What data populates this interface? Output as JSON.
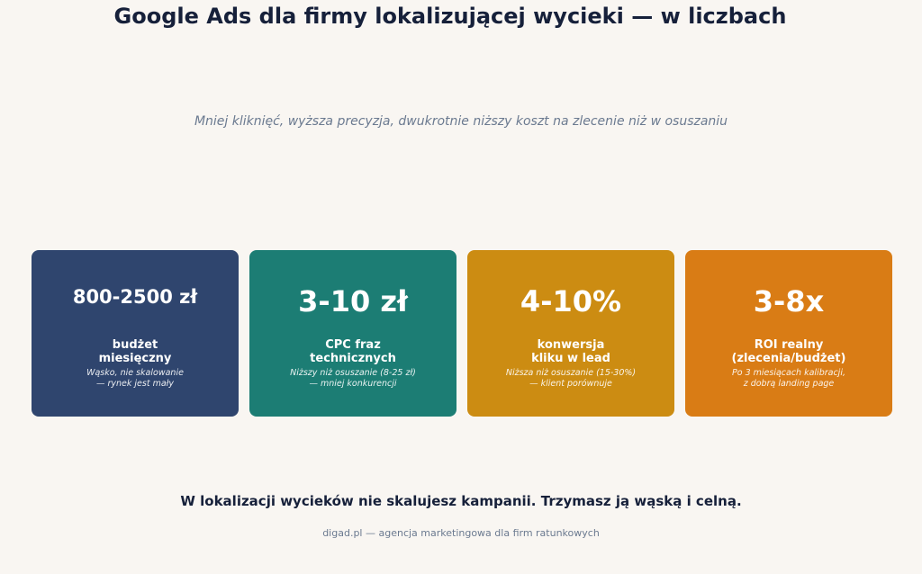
{
  "header": {
    "title": "Google Ads dla firmy lokalizującej wycieki — w liczbach",
    "subtitle": "Mniej kliknięć, wyższa precyzja, dwukrotnie niższy koszt na zlecenie niż w osuszaniu"
  },
  "cards": [
    {
      "value": "800-2500 zł",
      "label": [
        "budżet",
        "miesięczny"
      ],
      "note": [
        "Wąsko, nie skalowanie",
        "— rynek jest mały"
      ]
    },
    {
      "value": "3-10 zł",
      "label": [
        "CPC fraz",
        "technicznych"
      ],
      "note": [
        "Niższy niż osuszanie (8-25 zł)",
        "— mniej konkurencji"
      ]
    },
    {
      "value": "4-10%",
      "label": [
        "konwersja",
        "kliku w lead"
      ],
      "note": [
        "Niższa niż osuszanie (15-30%)",
        "— klient porównuje"
      ]
    },
    {
      "value": "3-8x",
      "label": [
        "ROI realny",
        "(zlecenia/budżet)"
      ],
      "note": [
        "Po 3 miesiącach kalibracji,",
        "z dobrą landing page"
      ]
    }
  ],
  "footer": {
    "tagline": "W lokalizacji wycieków nie skalujesz kampanii. Trzymasz ją wąską i celną.",
    "credit": "digad.pl — agencja marketingowa dla firm ratunkowych"
  }
}
